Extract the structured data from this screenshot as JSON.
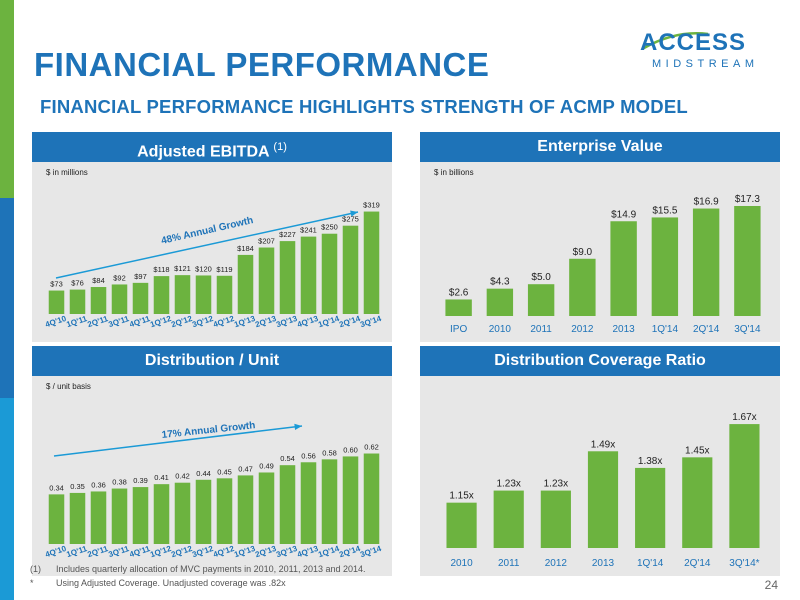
{
  "page": {
    "title": "FINANCIAL PERFORMANCE",
    "subtitle": "FINANCIAL PERFORMANCE HIGHLIGHTS STRENGTH OF ACMP MODEL",
    "page_number": "24",
    "logo": {
      "line1": "ACCESS",
      "line2": "MIDSTREAM"
    },
    "footnotes": [
      {
        "marker": "(1)",
        "text": "Includes quarterly allocation of MVC payments in 2010, 2011, 2013 and 2014."
      },
      {
        "marker": "*",
        "text": "Using Adjusted Coverage. Unadjusted coverage was .82x"
      }
    ]
  },
  "colors": {
    "accent": "#1E73B8",
    "bar": "#6CB33F",
    "panel_bg": "#E7E7E7",
    "sidebar": [
      "#6CB33F",
      "#1E73B8",
      "#1B9AD6"
    ]
  },
  "chart_data": [
    {
      "id": "ebitda",
      "type": "bar",
      "title": "Adjusted EBITDA",
      "title_sup": "(1)",
      "unit_note": "$ in millions",
      "annotation": "48% Annual Growth",
      "rotate_labels": true,
      "categories": [
        "4Q'10",
        "1Q'11",
        "2Q'11",
        "3Q'11",
        "4Q'11",
        "1Q'12",
        "2Q'12",
        "3Q'12",
        "4Q'12",
        "1Q'13",
        "2Q'13",
        "3Q'13",
        "4Q'13",
        "1Q'14",
        "2Q'14",
        "3Q'14"
      ],
      "values": [
        73,
        76,
        84,
        92,
        97,
        118,
        121,
        120,
        119,
        184,
        207,
        227,
        241,
        250,
        275,
        319
      ],
      "labels": [
        "$73",
        "$76",
        "$84",
        "$92",
        "$97",
        "$118",
        "$121",
        "$120",
        "$119",
        "$184",
        "$207",
        "$227",
        "$241",
        "$250",
        "$275",
        "$319"
      ],
      "ylim": [
        0,
        355
      ]
    },
    {
      "id": "ev",
      "type": "bar",
      "title": "Enterprise Value",
      "unit_note": "$ in billions",
      "rotate_labels": false,
      "categories": [
        "IPO",
        "2010",
        "2011",
        "2012",
        "2013",
        "1Q'14",
        "2Q'14",
        "3Q'14"
      ],
      "values": [
        2.6,
        4.3,
        5.0,
        9.0,
        14.9,
        15.5,
        16.9,
        17.3
      ],
      "labels": [
        "$2.6",
        "$4.3",
        "$5.0",
        "$9.0",
        "$14.9",
        "$15.5",
        "$16.9",
        "$17.3"
      ],
      "ylim": [
        0,
        19.5
      ]
    },
    {
      "id": "dist",
      "type": "bar",
      "title": "Distribution / Unit",
      "unit_note": "$ / unit basis",
      "annotation": "17% Annual Growth",
      "rotate_labels": true,
      "categories": [
        "4Q'10",
        "1Q'11",
        "2Q'11",
        "3Q'11",
        "4Q'11",
        "1Q'12",
        "2Q'12",
        "3Q'12",
        "4Q'12",
        "1Q'13",
        "2Q'13",
        "3Q'13",
        "4Q'13",
        "1Q'14",
        "2Q'14",
        "3Q'14"
      ],
      "values": [
        0.34,
        0.35,
        0.36,
        0.38,
        0.39,
        0.41,
        0.42,
        0.44,
        0.45,
        0.47,
        0.49,
        0.54,
        0.56,
        0.58,
        0.6,
        0.62
      ],
      "labels": [
        "0.34",
        "0.35",
        "0.36",
        "0.38",
        "0.39",
        "0.41",
        "0.42",
        "0.44",
        "0.45",
        "0.47",
        "0.49",
        "0.54",
        "0.56",
        "0.58",
        "0.60",
        "0.62"
      ],
      "ylim": [
        0,
        0.74
      ]
    },
    {
      "id": "coverage",
      "type": "bar",
      "title": "Distribution Coverage Ratio",
      "rotate_labels": false,
      "categories": [
        "2010",
        "2011",
        "2012",
        "2013",
        "1Q'14",
        "2Q'14",
        "3Q'14*"
      ],
      "values": [
        1.15,
        1.23,
        1.23,
        1.49,
        1.38,
        1.45,
        1.67
      ],
      "labels": [
        "1.15x",
        "1.23x",
        "1.23x",
        "1.49x",
        "1.38x",
        "1.45x",
        "1.67x"
      ],
      "ylim": [
        0.85,
        1.75
      ]
    }
  ]
}
